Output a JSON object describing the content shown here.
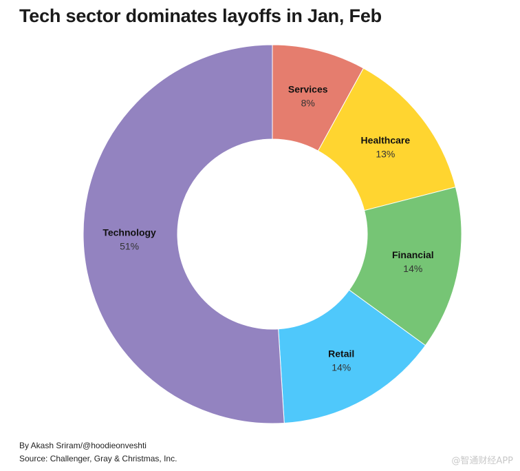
{
  "title": "Tech sector dominates layoffs in Jan, Feb",
  "byline": "By Akash Sriram/@hoodieonveshti",
  "source": "Source: Challenger, Gray & Christmas, Inc.",
  "watermark": "@智通财经APP",
  "chart_data": {
    "type": "pie",
    "donut": true,
    "title": "Tech sector dominates layoffs in Jan, Feb",
    "slices": [
      {
        "label": "Services",
        "value": 8,
        "display": "8%",
        "color": "#E57D6E"
      },
      {
        "label": "Healthcare",
        "value": 13,
        "display": "13%",
        "color": "#FFD530"
      },
      {
        "label": "Financial",
        "value": 14,
        "display": "14%",
        "color": "#76C575"
      },
      {
        "label": "Retail",
        "value": 14,
        "display": "14%",
        "color": "#4FC8FB"
      },
      {
        "label": "Technology",
        "value": 51,
        "display": "51%",
        "color": "#9383C0"
      }
    ]
  }
}
